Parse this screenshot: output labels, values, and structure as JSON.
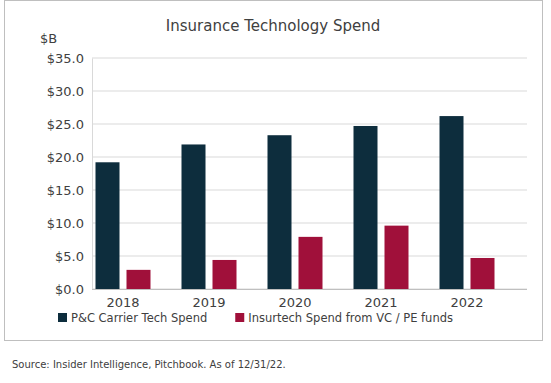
{
  "chart_data": {
    "type": "bar",
    "title": "Insurance Technology Spend",
    "y_label": "$B",
    "source": "Source: Insider Intelligence, Pitchbook. As of 12/31/22.",
    "categories": [
      "2018",
      "2019",
      "2020",
      "2021",
      "2022"
    ],
    "series": [
      {
        "name": "P&C Carrier Tech Spend",
        "color": "#0d2d3d",
        "values": [
          19.2,
          21.9,
          23.3,
          24.7,
          26.2
        ]
      },
      {
        "name": "Insurtech Spend from VC / PE funds",
        "color": "#a0103a",
        "values": [
          2.9,
          4.4,
          7.9,
          9.6,
          4.7
        ]
      }
    ],
    "ylim": [
      0,
      35
    ],
    "yticks": [
      {
        "value": 0,
        "label": "$0.0"
      },
      {
        "value": 5,
        "label": "$5.0"
      },
      {
        "value": 10,
        "label": "$10.0"
      },
      {
        "value": 15,
        "label": "$15.0"
      },
      {
        "value": 20,
        "label": "$20.0"
      },
      {
        "value": 25,
        "label": "$25.0"
      },
      {
        "value": 30,
        "label": "$30.0"
      },
      {
        "value": 35,
        "label": "$35.0"
      }
    ],
    "grid": true,
    "legend": "bottom"
  }
}
